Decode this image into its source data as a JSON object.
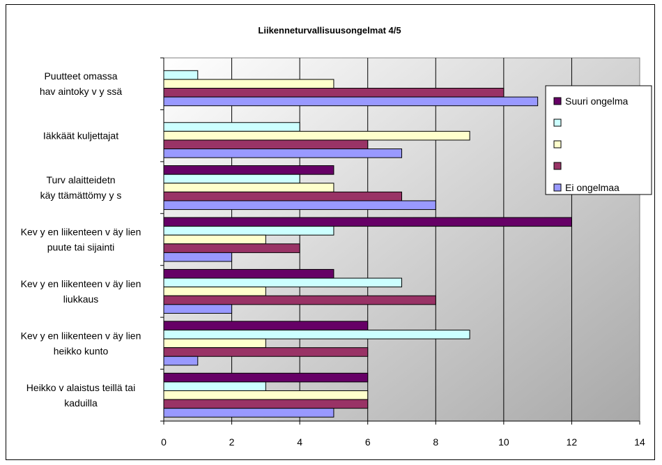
{
  "chart_data": {
    "type": "bar",
    "orientation": "horizontal",
    "title": "Liikenneturvallisuusongelmat 4/5",
    "xlim": [
      0,
      14
    ],
    "x_ticks": [
      "0",
      "2",
      "4",
      "6",
      "8",
      "10",
      "12",
      "14"
    ],
    "grid": "vertical",
    "legend_position": "right",
    "categories": [
      [
        "Puutteet omassa",
        "hav aintoky v y ssä"
      ],
      [
        "Iäkkäät kuljettajat"
      ],
      [
        "Turv alaitteidetn",
        "käy ttämättömy y s"
      ],
      [
        "Kev y en liikenteen v äy lien",
        "puute tai sijainti"
      ],
      [
        "Kev y en liikenteen v äy lien",
        "liukkaus"
      ],
      [
        "Kev y en liikenteen v äy lien",
        "heikko kunto"
      ],
      [
        "Heikko v alaistus teillä tai",
        "kaduilla"
      ]
    ],
    "series": [
      {
        "name": "Suuri ongelma",
        "color": "#660066",
        "values": [
          0,
          0,
          5,
          12,
          5,
          6,
          6
        ]
      },
      {
        "name": "",
        "color": "#ccffff",
        "values": [
          1,
          4,
          4,
          5,
          7,
          9,
          3
        ]
      },
      {
        "name": "",
        "color": "#ffffcc",
        "values": [
          5,
          9,
          5,
          3,
          3,
          3,
          6
        ]
      },
      {
        "name": "",
        "color": "#993366",
        "values": [
          10,
          6,
          7,
          4,
          8,
          6,
          6
        ]
      },
      {
        "name": "Ei ongelmaa",
        "color": "#9999ff",
        "values": [
          11,
          7,
          8,
          2,
          2,
          1,
          5
        ]
      }
    ]
  }
}
